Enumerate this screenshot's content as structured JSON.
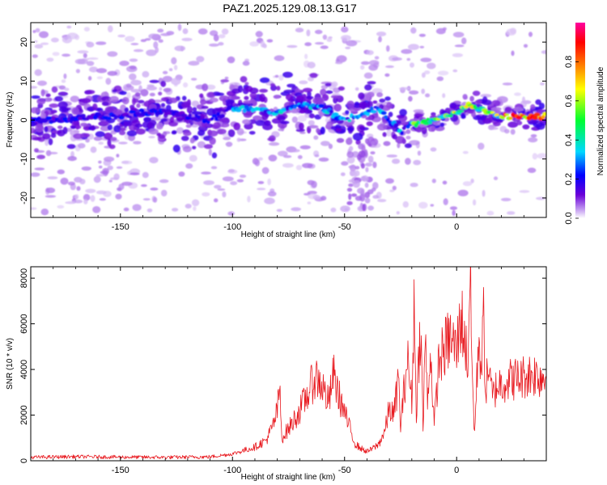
{
  "figure_title": "PAZ1.2025.129.08.13.G17",
  "chart_data": [
    {
      "type": "heatmap",
      "title": "PAZ1.2025.129.08.13.G17",
      "xlabel": "Height of straight line (km)",
      "ylabel": "Frequency (Hz)",
      "xlim": [
        -190,
        40
      ],
      "ylim": [
        -25,
        25
      ],
      "x_ticks": [
        -150,
        -100,
        -50,
        0
      ],
      "y_ticks": [
        -20,
        -10,
        0,
        10,
        20
      ],
      "colorbar": {
        "label": "Normalized spectral amplitude",
        "range": [
          0,
          1
        ],
        "ticks": [
          "0.0",
          "0.2",
          "0.4",
          "0.6",
          "0.8"
        ],
        "colors": [
          "#ffffff",
          "#c9a6f2",
          "#6a00d8",
          "#0000ff",
          "#00d8ff",
          "#00ff30",
          "#ffff00",
          "#ff8000",
          "#ff0000",
          "#ff00a0"
        ]
      },
      "ridge": {
        "x": [
          -190,
          -175,
          -160,
          -150,
          -140,
          -130,
          -120,
          -110,
          -100,
          -90,
          -80,
          -70,
          -60,
          -50,
          -45,
          -40,
          -35,
          -30,
          -25,
          -20,
          -10,
          0,
          5,
          10,
          20,
          30,
          40
        ],
        "y": [
          0,
          0,
          1,
          1,
          2,
          2,
          1,
          0,
          3,
          3,
          2,
          4,
          3,
          0,
          1,
          2,
          3,
          0,
          -3,
          -1,
          0,
          2,
          4,
          3,
          1,
          1,
          1
        ]
      }
    },
    {
      "type": "line",
      "xlabel": "Height of straight line (km)",
      "ylabel": "SNR (10 * v/v)",
      "xlim": [
        -190,
        40
      ],
      "ylim": [
        0,
        8500
      ],
      "x_ticks": [
        -150,
        -100,
        -50,
        0
      ],
      "y_ticks": [
        0,
        2000,
        4000,
        6000,
        8000
      ],
      "color": "#e8191f",
      "series": [
        {
          "x": [
            -190,
            -170,
            -150,
            -130,
            -110,
            -100,
            -95,
            -90,
            -85,
            -82,
            -80,
            -79,
            -78,
            -75,
            -70,
            -67,
            -63,
            -60,
            -57,
            -55,
            -53,
            -50,
            -48,
            -45,
            -42,
            -40,
            -38,
            -35,
            -32,
            -30,
            -28,
            -26,
            -25,
            -22,
            -20,
            -19,
            -18,
            -16,
            -15,
            -14,
            -13,
            -12,
            -11,
            -10,
            -8,
            -5,
            -3,
            0,
            2,
            5,
            6,
            7,
            8,
            10,
            11,
            12,
            13,
            14,
            15,
            16,
            18,
            20,
            22,
            25,
            28,
            30,
            33,
            35,
            38,
            40
          ],
          "y": [
            150,
            180,
            160,
            150,
            170,
            300,
            450,
            600,
            900,
            1500,
            2200,
            3200,
            1000,
            1400,
            2200,
            2800,
            3700,
            3300,
            2500,
            3800,
            3000,
            2100,
            1500,
            700,
            500,
            400,
            500,
            700,
            1300,
            2300,
            2000,
            3600,
            1500,
            4500,
            2600,
            6700,
            2200,
            6200,
            1200,
            5700,
            2400,
            4800,
            3600,
            1500,
            4300,
            5000,
            5400,
            4800,
            6400,
            4300,
            8400,
            3500,
            1200,
            5700,
            3800,
            6300,
            2900,
            4200,
            3400,
            2800,
            3300,
            3400,
            3500,
            3600,
            3600,
            3700,
            3800,
            3800,
            3700,
            3700
          ]
        }
      ]
    }
  ]
}
